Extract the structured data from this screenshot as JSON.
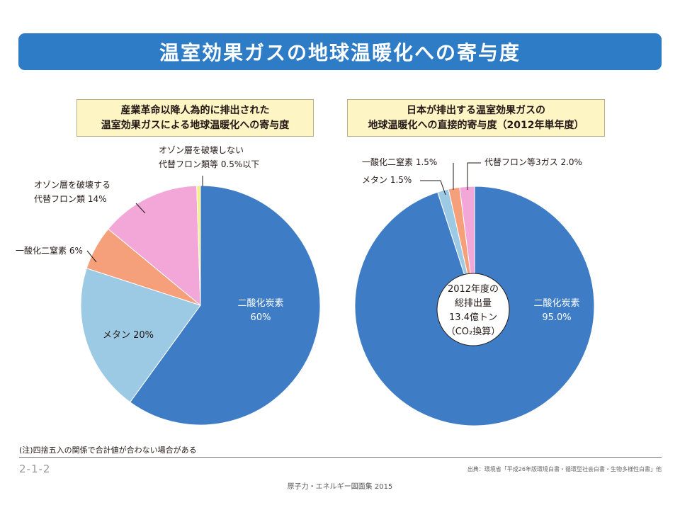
{
  "title": "温室効果ガスの地球温暖化への寄与度",
  "chart_data": [
    {
      "type": "pie",
      "title": [
        "産業革命以降人為的に排出された",
        "温室効果ガスによる地球温暖化への寄与度"
      ],
      "slices": [
        {
          "key": "co2",
          "label": [
            "二酸化炭素",
            "60%"
          ],
          "value": 60,
          "color": "#3e7dc5",
          "label_inside": true
        },
        {
          "key": "methane",
          "label": [
            "メタン 20%"
          ],
          "value": 20,
          "color": "#9ccae4",
          "label_inside": true
        },
        {
          "key": "n2o",
          "label": [
            "一酸化二窒素 6%"
          ],
          "value": 6,
          "color": "#f5a07a",
          "label_inside": false
        },
        {
          "key": "hfc",
          "label": [
            "オゾン層を破壊する",
            "代替フロン類 14%"
          ],
          "value": 14,
          "color": "#f3a7d8",
          "label_inside": false
        },
        {
          "key": "other-fluorocarbon",
          "label": [
            "オゾン層を破壊しない",
            "代替フロン類等 0.5%以下"
          ],
          "value": 0.5,
          "color": "#f6ef86",
          "label_inside": false
        }
      ]
    },
    {
      "type": "pie",
      "title": [
        "日本が排出する温室効果ガスの",
        "地球温暖化への直接的寄与度（2012年単年度）"
      ],
      "center_text": [
        "2012年度の",
        "総排出量",
        "13.4億トン",
        "（CO₂換算）"
      ],
      "slices": [
        {
          "key": "co2",
          "label": [
            "二酸化炭素",
            "95.0%"
          ],
          "value": 95.0,
          "color": "#3e7dc5",
          "label_inside": true
        },
        {
          "key": "methane",
          "label": [
            "メタン 1.5%"
          ],
          "value": 1.5,
          "color": "#9ccae4",
          "label_inside": false
        },
        {
          "key": "n2o",
          "label": [
            "一酸化二窒素 1.5%"
          ],
          "value": 1.5,
          "color": "#f5a07a",
          "label_inside": false
        },
        {
          "key": "fluorocarbon",
          "label": [
            "代替フロン等3ガス 2.0%"
          ],
          "value": 2.0,
          "color": "#f3a7d8",
          "label_inside": false
        }
      ]
    }
  ],
  "note": "(注)四捨五入の関係で合計値が合わない場合がある",
  "page_number": "2-1-2",
  "source": "出典：環境省「平成26年版環境白書・循環型社会白書・生物多様性白書」他",
  "footer": "原子力・エネルギー図面集 2015"
}
